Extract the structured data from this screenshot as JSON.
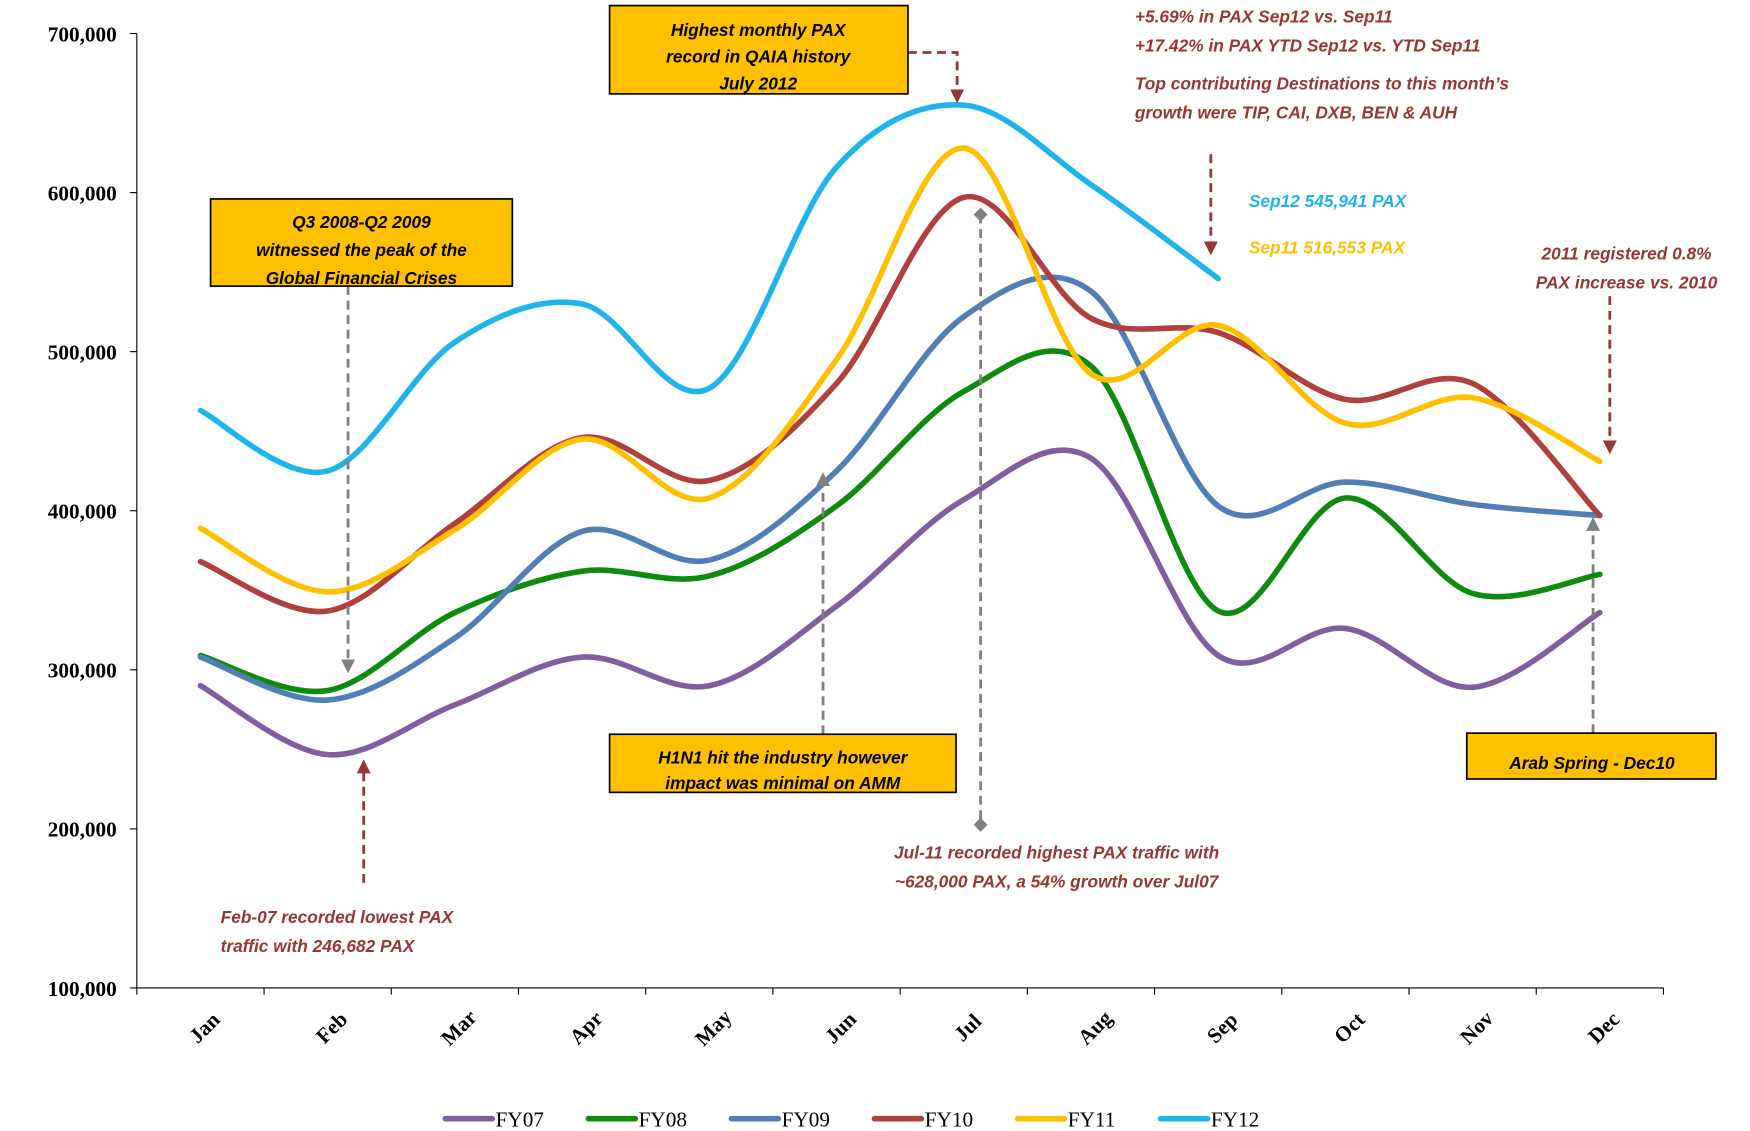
{
  "chart_data": {
    "type": "line",
    "categories": [
      "Jan",
      "Feb",
      "Mar",
      "Apr",
      "May",
      "Jun",
      "Jul",
      "Aug",
      "Sep",
      "Oct",
      "Nov",
      "Dec"
    ],
    "series": [
      {
        "name": "FY07",
        "color": "#7f5f9f",
        "values": [
          290000,
          246682,
          278000,
          308000,
          290000,
          340000,
          407000,
          433000,
          309000,
          326000,
          289000,
          336000
        ]
      },
      {
        "name": "FY08",
        "color": "#0e8a0e",
        "values": [
          309000,
          287000,
          336000,
          362000,
          359000,
          403000,
          475000,
          491000,
          337000,
          408000,
          348000,
          360000
        ]
      },
      {
        "name": "FY09",
        "color": "#4f7fb5",
        "values": [
          308000,
          281000,
          320000,
          387000,
          369000,
          425000,
          522000,
          538000,
          403000,
          418000,
          404000,
          397000
        ]
      },
      {
        "name": "FY10",
        "color": "#b0403d",
        "values": [
          368000,
          337000,
          392000,
          446000,
          419000,
          480000,
          597000,
          521000,
          512000,
          470000,
          480000,
          397000
        ]
      },
      {
        "name": "FY11",
        "color": "#ffc000",
        "values": [
          389000,
          349000,
          388000,
          445000,
          408000,
          495000,
          628000,
          486000,
          516553,
          455000,
          471000,
          431000
        ]
      },
      {
        "name": "FY12",
        "color": "#1fb5ea",
        "values": [
          463000,
          425000,
          506000,
          530000,
          477000,
          616000,
          655000,
          605000,
          545941,
          null,
          null,
          null
        ]
      }
    ],
    "ylim": [
      100000,
      700000
    ],
    "yticks": [
      {
        "value": 100000,
        "label": "100,000"
      },
      {
        "value": 200000,
        "label": "200,000"
      },
      {
        "value": 300000,
        "label": "300,000"
      },
      {
        "value": 400000,
        "label": "400,000"
      },
      {
        "value": 500000,
        "label": "500,000"
      },
      {
        "value": 600000,
        "label": "600,000"
      },
      {
        "value": 700000,
        "label": "700,000"
      }
    ],
    "annotations": [
      [
        "Highest monthly PAX",
        "record in QAIA history",
        "July 2012"
      ],
      [
        "+5.69% in PAX Sep12 vs. Sep11",
        "+17.42% in PAX YTD Sep12 vs. YTD Sep11"
      ],
      [
        "Top contributing Destinations to this month’s",
        "growth were TIP, CAI, DXB, BEN & AUH"
      ],
      [
        "Sep12 545,941 PAX"
      ],
      [
        "Sep11 516,553 PAX"
      ],
      [
        "2011 registered 0.8%",
        "PAX increase vs. 2010"
      ],
      [
        "Q3 2008-Q2 2009",
        "witnessed the peak of the",
        "Global Financial Crises"
      ],
      [
        "H1N1 hit the industry however",
        "impact was minimal on AMM"
      ],
      [
        "Jul-11 recorded highest PAX traffic with",
        "~628,000 PAX, a 54% growth over Jul07"
      ],
      [
        "Feb-07 recorded lowest PAX",
        "traffic with 246,682 PAX"
      ],
      [
        "Arab Spring - Dec10"
      ]
    ]
  }
}
